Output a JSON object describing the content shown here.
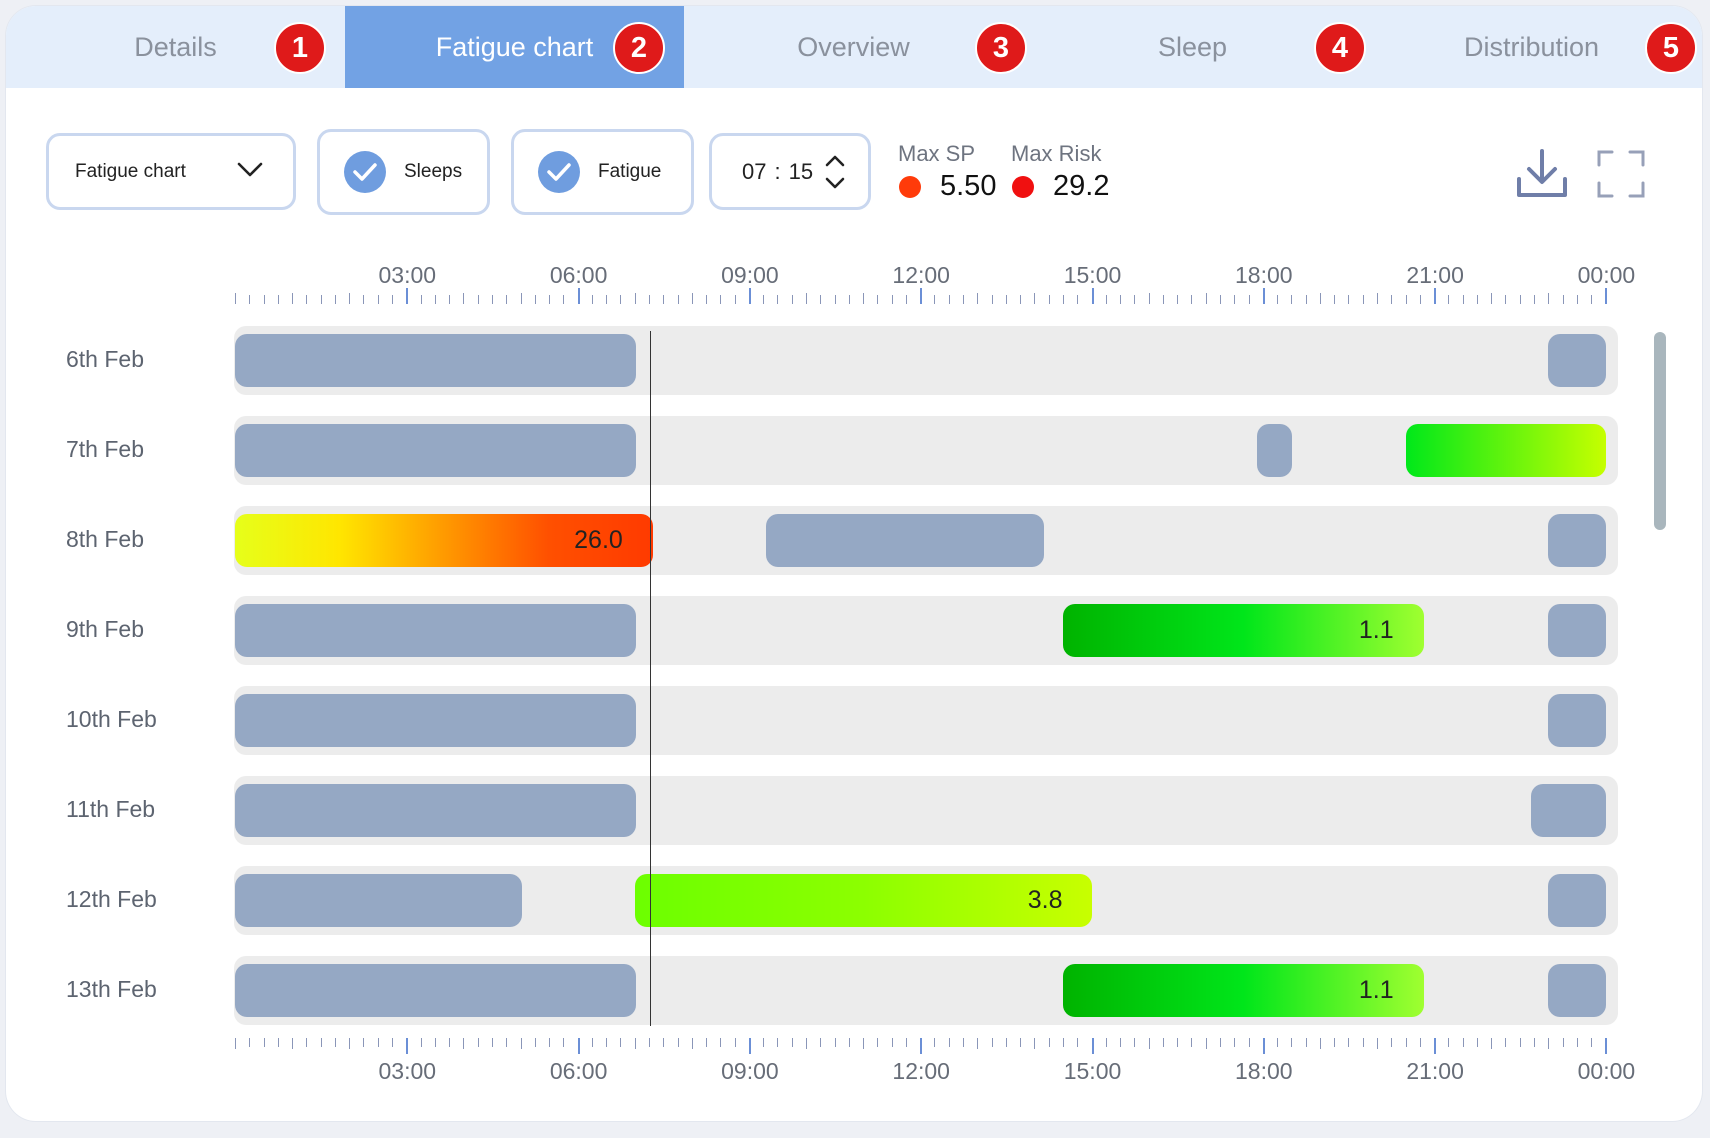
{
  "tabs": [
    {
      "label": "Details",
      "badge": "1",
      "active": false
    },
    {
      "label": "Fatigue chart",
      "badge": "2",
      "active": true
    },
    {
      "label": "Overview",
      "badge": "3",
      "active": false
    },
    {
      "label": "Sleep",
      "badge": "4",
      "active": false
    },
    {
      "label": "Distribution",
      "badge": "5",
      "active": false
    }
  ],
  "toolbar": {
    "chart_select": "Fatigue chart",
    "sleeps_label": "Sleeps",
    "fatigue_label": "Fatigue",
    "time_hours": "07",
    "time_sep": ":",
    "time_minutes": "15"
  },
  "stats": {
    "max_sp_label": "Max SP",
    "max_sp_value": "5.50",
    "max_sp_color": "#ff3b0a",
    "max_risk_label": "Max Risk",
    "max_risk_value": "29.2",
    "max_risk_color": "#f01010"
  },
  "icons": [
    "download-icon",
    "fullscreen-icon",
    "chevron-down-icon",
    "check-icon",
    "stepper-icon"
  ],
  "chart_data": {
    "type": "timeline",
    "x_ticks": [
      "03:00",
      "06:00",
      "09:00",
      "12:00",
      "15:00",
      "18:00",
      "21:00",
      "00:00"
    ],
    "x_range_hours": [
      0,
      24
    ],
    "current_time_hours": 7.25,
    "rows": [
      {
        "label": "6th Feb",
        "bars": [
          {
            "kind": "sleep",
            "start": 0,
            "end": 7.0
          },
          {
            "kind": "sleep",
            "start": 23.0,
            "end": 24.0
          }
        ]
      },
      {
        "label": "7th Feb",
        "bars": [
          {
            "kind": "sleep",
            "start": 0,
            "end": 7.0
          },
          {
            "kind": "sleep",
            "start": 17.9,
            "end": 18.5
          },
          {
            "kind": "fatigue",
            "start": 20.5,
            "end": 24.0,
            "gradient": [
              "#00e81a",
              "#c6ff00"
            ]
          }
        ]
      },
      {
        "label": "8th Feb",
        "bars": [
          {
            "kind": "fatigue",
            "start": 0,
            "end": 7.3,
            "value": "26.0",
            "gradient": [
              "#e6ff1a",
              "#ffe600",
              "#ff9a00",
              "#ff5000",
              "#ff3a00"
            ]
          },
          {
            "kind": "sleep",
            "start": 9.3,
            "end": 14.15
          },
          {
            "kind": "sleep",
            "start": 23.0,
            "end": 24.0
          }
        ]
      },
      {
        "label": "9th Feb",
        "bars": [
          {
            "kind": "sleep",
            "start": 0,
            "end": 7.0
          },
          {
            "kind": "fatigue",
            "start": 14.5,
            "end": 20.8,
            "value": "1.1",
            "gradient": [
              "#00b300",
              "#00e61a",
              "#a0ff30"
            ]
          },
          {
            "kind": "sleep",
            "start": 23.0,
            "end": 24.0
          }
        ]
      },
      {
        "label": "10th Feb",
        "bars": [
          {
            "kind": "sleep",
            "start": 0,
            "end": 7.0
          },
          {
            "kind": "sleep",
            "start": 23.0,
            "end": 24.0
          }
        ]
      },
      {
        "label": "11th Feb",
        "bars": [
          {
            "kind": "sleep",
            "start": 0,
            "end": 7.0
          },
          {
            "kind": "sleep",
            "start": 22.7,
            "end": 24.0
          }
        ]
      },
      {
        "label": "12th Feb",
        "bars": [
          {
            "kind": "sleep",
            "start": 0,
            "end": 5.0
          },
          {
            "kind": "fatigue",
            "start": 7.0,
            "end": 15.0,
            "value": "3.8",
            "gradient": [
              "#6cff00",
              "#8cff00",
              "#c8ff00"
            ]
          },
          {
            "kind": "sleep",
            "start": 23.0,
            "end": 24.0
          }
        ]
      },
      {
        "label": "13th Feb",
        "bars": [
          {
            "kind": "sleep",
            "start": 0,
            "end": 7.0
          },
          {
            "kind": "fatigue",
            "start": 14.5,
            "end": 20.8,
            "value": "1.1",
            "gradient": [
              "#00b300",
              "#00e61a",
              "#a0ff30"
            ]
          },
          {
            "kind": "sleep",
            "start": 23.0,
            "end": 24.0
          }
        ]
      }
    ]
  }
}
